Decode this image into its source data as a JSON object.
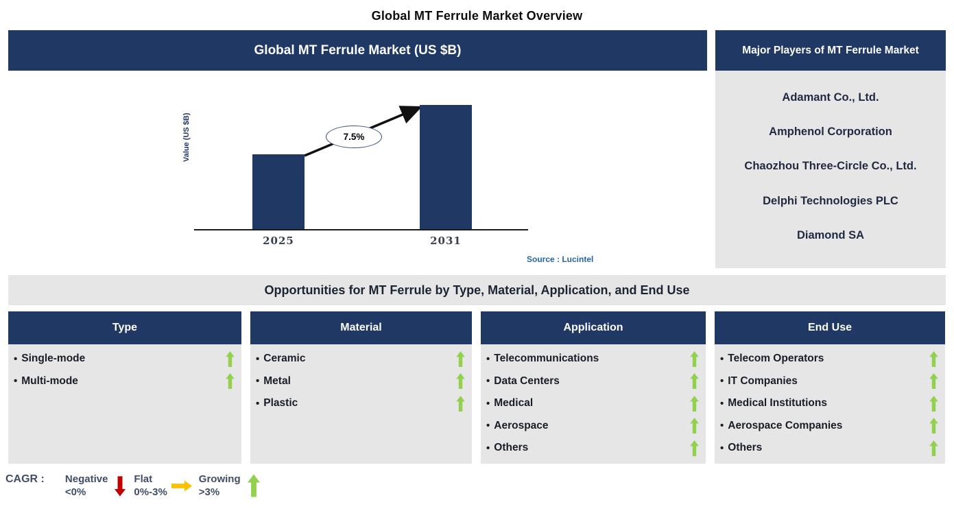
{
  "page_title": "Global MT Ferrule Market Overview",
  "market_chart": {
    "header": "Global MT Ferrule Market (US $B)",
    "source": "Source : Lucintel",
    "chart_data": {
      "type": "bar",
      "title": "Global MT Ferrule Market (US $B)",
      "categories": [
        "2025",
        "2031"
      ],
      "values_relative": [
        0.6,
        1.0
      ],
      "value_axis_labeled": false,
      "cagr_label": "7.5%",
      "xlabel": "",
      "ylabel": "Value (US $B)",
      "bar_color": "#1f3864",
      "annotation": "arrow from 2025 bar top to 2031 bar top with CAGR 7.5% in ellipse",
      "legend_position": "none",
      "grid": false
    }
  },
  "major_players": {
    "header": "Major Players of MT Ferrule Market",
    "companies": [
      "Adamant Co., Ltd.",
      "Amphenol Corporation",
      "Chaozhou Three-Circle Co., Ltd.",
      "Delphi Technologies PLC",
      "Diamond SA"
    ]
  },
  "opportunities": {
    "title": "Opportunities for MT Ferrule by Type, Material, Application, and End Use",
    "columns": [
      {
        "header": "Type",
        "items": [
          {
            "label": "Single-mode",
            "trend": "growing"
          },
          {
            "label": "Multi-mode",
            "trend": "growing"
          }
        ]
      },
      {
        "header": "Material",
        "items": [
          {
            "label": "Ceramic",
            "trend": "growing"
          },
          {
            "label": "Metal",
            "trend": "growing"
          },
          {
            "label": "Plastic",
            "trend": "growing"
          }
        ]
      },
      {
        "header": "Application",
        "items": [
          {
            "label": "Telecommunications",
            "trend": "growing"
          },
          {
            "label": "Data Centers",
            "trend": "growing"
          },
          {
            "label": "Medical",
            "trend": "growing"
          },
          {
            "label": "Aerospace",
            "trend": "growing"
          },
          {
            "label": "Others",
            "trend": "growing"
          }
        ]
      },
      {
        "header": "End Use",
        "items": [
          {
            "label": "Telecom Operators",
            "trend": "growing"
          },
          {
            "label": "IT Companies",
            "trend": "growing"
          },
          {
            "label": "Medical Institutions",
            "trend": "growing"
          },
          {
            "label": "Aerospace Companies",
            "trend": "growing"
          },
          {
            "label": "Others",
            "trend": "growing"
          }
        ]
      }
    ]
  },
  "legend": {
    "label": "CAGR :",
    "entries": [
      {
        "name": "Negative",
        "range": "<0%",
        "direction": "down",
        "color": "#c00000"
      },
      {
        "name": "Flat",
        "range": "0%-3%",
        "direction": "right",
        "color": "#ffc000"
      },
      {
        "name": "Growing",
        "range": ">3%",
        "direction": "up",
        "color": "#92d050"
      }
    ]
  },
  "colors": {
    "navy": "#1f3864",
    "panel_gray": "#e7e6e6",
    "growing_green": "#92d050",
    "negative_red": "#c00000",
    "flat_amber": "#ffc000",
    "source_blue": "#2565a8"
  }
}
